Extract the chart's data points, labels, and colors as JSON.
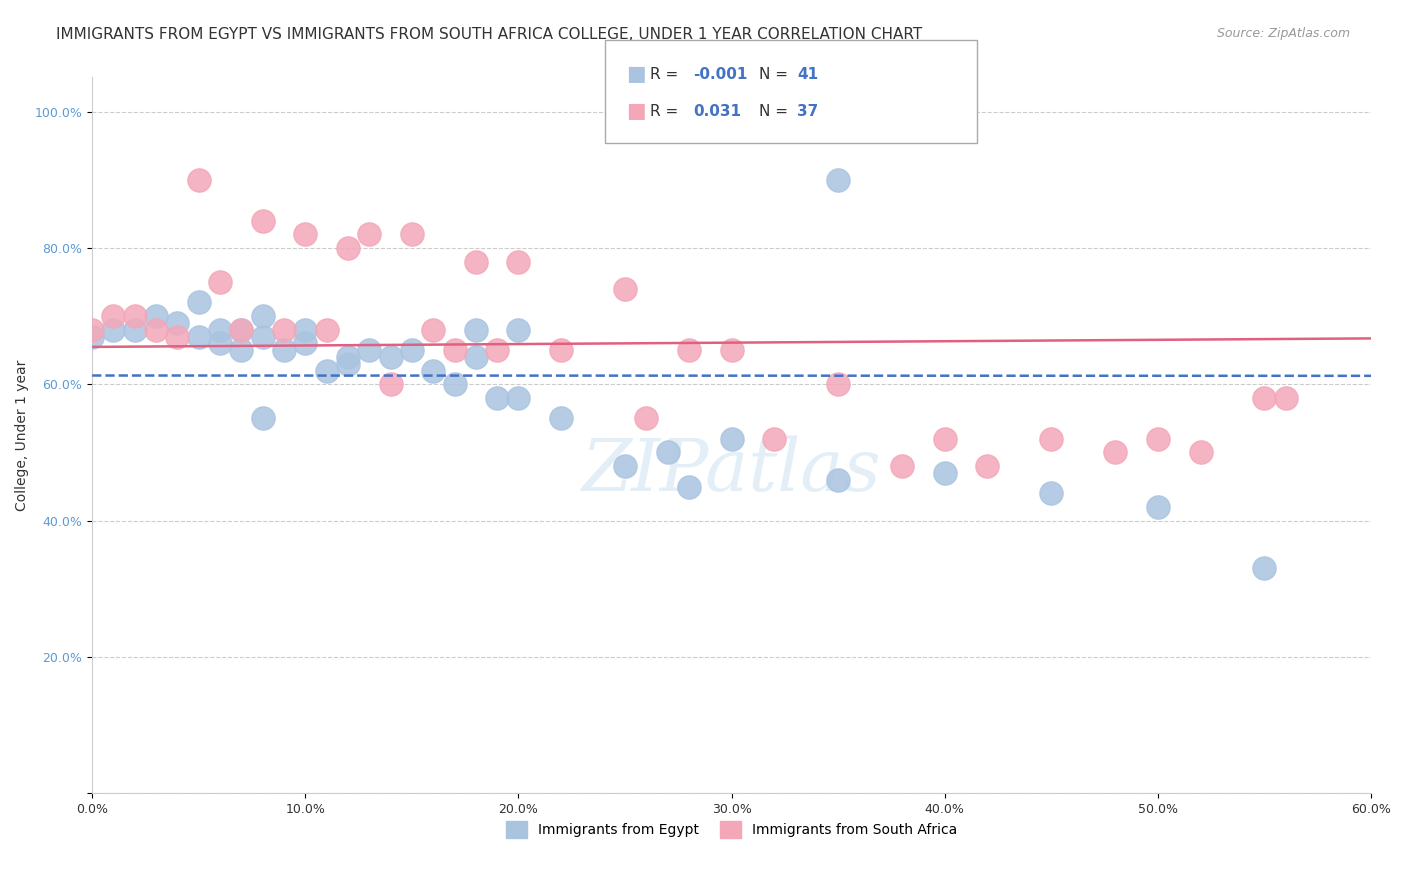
{
  "title": "IMMIGRANTS FROM EGYPT VS IMMIGRANTS FROM SOUTH AFRICA COLLEGE, UNDER 1 YEAR CORRELATION CHART",
  "source": "Source: ZipAtlas.com",
  "ylabel": "College, Under 1 year",
  "xlim": [
    0.0,
    0.6
  ],
  "ylim": [
    0.0,
    1.05
  ],
  "x_ticks": [
    0.0,
    0.1,
    0.2,
    0.3,
    0.4,
    0.5,
    0.6
  ],
  "x_tick_labels": [
    "0.0%",
    "10.0%",
    "20.0%",
    "30.0%",
    "40.0%",
    "50.0%",
    "60.0%"
  ],
  "y_ticks": [
    0.0,
    0.2,
    0.4,
    0.6,
    0.8,
    1.0
  ],
  "y_tick_labels": [
    "",
    "20.0%",
    "40.0%",
    "60.0%",
    "80.0%",
    "100.0%"
  ],
  "legend_label1": "Immigrants from Egypt",
  "legend_label2": "Immigrants from South Africa",
  "R_egypt": -0.001,
  "N_egypt": 41,
  "R_sa": 0.031,
  "N_sa": 37,
  "egypt_color": "#aac4e0",
  "sa_color": "#f4a7b9",
  "egypt_line_color": "#4472c4",
  "sa_line_color": "#e06080",
  "egypt_x": [
    0.0,
    0.01,
    0.02,
    0.03,
    0.04,
    0.05,
    0.05,
    0.06,
    0.06,
    0.07,
    0.07,
    0.08,
    0.08,
    0.09,
    0.1,
    0.1,
    0.11,
    0.12,
    0.13,
    0.14,
    0.15,
    0.16,
    0.17,
    0.18,
    0.19,
    0.2,
    0.22,
    0.25,
    0.27,
    0.28,
    0.3,
    0.35,
    0.35,
    0.4,
    0.45,
    0.5,
    0.55,
    0.18,
    0.2,
    0.08,
    0.12
  ],
  "egypt_y": [
    0.67,
    0.68,
    0.68,
    0.7,
    0.69,
    0.72,
    0.67,
    0.68,
    0.66,
    0.65,
    0.68,
    0.67,
    0.55,
    0.65,
    0.66,
    0.68,
    0.62,
    0.64,
    0.65,
    0.64,
    0.65,
    0.62,
    0.6,
    0.64,
    0.58,
    0.58,
    0.55,
    0.48,
    0.5,
    0.45,
    0.52,
    0.46,
    0.9,
    0.47,
    0.44,
    0.42,
    0.33,
    0.68,
    0.68,
    0.7,
    0.63
  ],
  "sa_x": [
    0.0,
    0.01,
    0.02,
    0.03,
    0.04,
    0.05,
    0.06,
    0.07,
    0.08,
    0.09,
    0.1,
    0.11,
    0.12,
    0.13,
    0.14,
    0.15,
    0.16,
    0.17,
    0.18,
    0.19,
    0.2,
    0.22,
    0.25,
    0.28,
    0.3,
    0.35,
    0.38,
    0.4,
    0.42,
    0.45,
    0.48,
    0.5,
    0.52,
    0.55,
    0.56,
    0.26,
    0.32
  ],
  "sa_y": [
    0.68,
    0.7,
    0.7,
    0.68,
    0.67,
    0.9,
    0.75,
    0.68,
    0.84,
    0.68,
    0.82,
    0.68,
    0.8,
    0.82,
    0.6,
    0.82,
    0.68,
    0.65,
    0.78,
    0.65,
    0.78,
    0.65,
    0.74,
    0.65,
    0.65,
    0.6,
    0.48,
    0.52,
    0.48,
    0.52,
    0.5,
    0.52,
    0.5,
    0.58,
    0.58,
    0.55,
    0.52
  ],
  "watermark": "ZIPatlas",
  "background_color": "#ffffff",
  "grid_color": "#cccccc",
  "title_fontsize": 11,
  "axis_fontsize": 10,
  "tick_fontsize": 9,
  "tick_color_y": "#5b9bd5",
  "tick_color_x": "#333333",
  "text_color": "#333333",
  "source_color": "#999999"
}
